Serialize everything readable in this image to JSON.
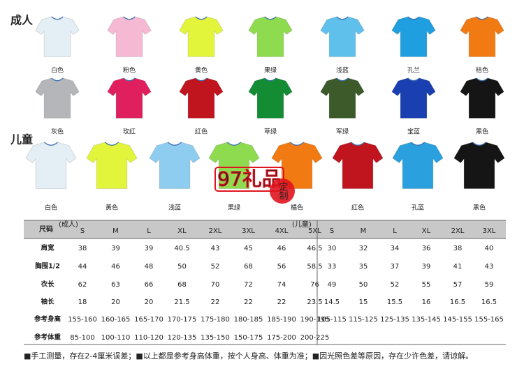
{
  "adult": {
    "title": "成人",
    "items": [
      {
        "label": "白色",
        "color": "#e4eef5"
      },
      {
        "label": "粉色",
        "color": "#f6b9d4"
      },
      {
        "label": "黄色",
        "color": "#e3f53a"
      },
      {
        "label": "果绿",
        "color": "#8fdb4f"
      },
      {
        "label": "浅蓝",
        "color": "#5fc0ec"
      },
      {
        "label": "孔兰",
        "color": "#1f9ee0"
      },
      {
        "label": "桔色",
        "color": "#f27a12"
      },
      {
        "label": "灰色",
        "color": "#b4b6b9"
      },
      {
        "label": "玫红",
        "color": "#e0205e"
      },
      {
        "label": "红色",
        "color": "#c0141e"
      },
      {
        "label": "草绿",
        "color": "#138c34"
      },
      {
        "label": "军绿",
        "color": "#3c5a2a"
      },
      {
        "label": "宝蓝",
        "color": "#1a3fb0"
      },
      {
        "label": "黑色",
        "color": "#151515"
      }
    ]
  },
  "child": {
    "title": "儿童",
    "items": [
      {
        "label": "白色",
        "color": "#e4eef5"
      },
      {
        "label": "黄色",
        "color": "#e3f53a"
      },
      {
        "label": "浅蓝",
        "color": "#8fcdf0"
      },
      {
        "label": "果绿",
        "color": "#8fdb4f"
      },
      {
        "label": "橘色",
        "color": "#f27a12"
      },
      {
        "label": "红色",
        "color": "#c0141e"
      },
      {
        "label": "孔蓝",
        "color": "#2aa0df"
      },
      {
        "label": "黑色",
        "color": "#151515"
      }
    ]
  },
  "watermark": {
    "brand": "97礼品",
    "tag": "定制"
  },
  "table": {
    "corner": "尺码",
    "adult_group": "(成人)",
    "child_group": "(儿童)",
    "adult_sizes": [
      "S",
      "M",
      "L",
      "XL",
      "2XL",
      "3XL",
      "4XL",
      "5XL"
    ],
    "child_sizes": [
      "S",
      "M",
      "L",
      "XL",
      "2XL",
      "3XL"
    ],
    "rows": [
      {
        "label": "肩宽",
        "adult": [
          38,
          39,
          39,
          40.5,
          43,
          45,
          46,
          46.5
        ],
        "child": [
          30,
          32,
          34,
          36,
          38,
          40
        ]
      },
      {
        "label": "胸围1/2",
        "adult": [
          44,
          46,
          48,
          50,
          52,
          68,
          56,
          58.5
        ],
        "child": [
          33,
          35,
          37,
          39,
          41,
          43
        ]
      },
      {
        "label": "衣长",
        "adult": [
          62,
          63,
          66,
          68,
          70,
          72,
          74,
          76
        ],
        "child": [
          49,
          50,
          52,
          55,
          57,
          59
        ]
      },
      {
        "label": "袖长",
        "adult": [
          18,
          20,
          20,
          21.5,
          22,
          22,
          22,
          23.5
        ],
        "child": [
          14.5,
          15,
          15.5,
          16,
          16.5,
          16.5
        ]
      },
      {
        "label": "参考身高",
        "adult": [
          "155-160",
          "160-165",
          "165-170",
          "170-175",
          "175-180",
          "180-185",
          "185-190",
          "190-195"
        ],
        "child": [
          "105-115",
          "115-125",
          "125-135",
          "135-145",
          "145-155",
          "155-165"
        ]
      },
      {
        "label": "参考体重",
        "adult": [
          "85-100",
          "100-110",
          "110-120",
          "120-135",
          "135-150",
          "150-175",
          "175-200",
          "200-225"
        ],
        "child": []
      }
    ]
  },
  "note": "■手工测量，存在2-4厘米误差；■以上都是参考身高体重，按个人身高、体重为准；■因光照色差等原因，存在少许色差，请谅解。"
}
